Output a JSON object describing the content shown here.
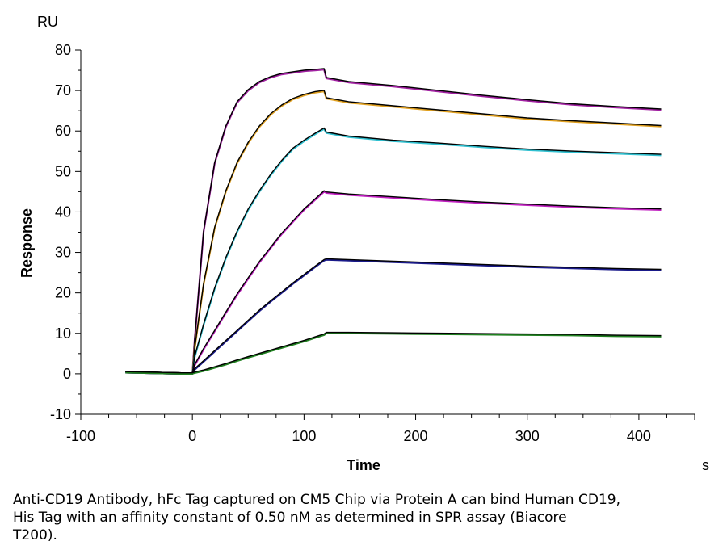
{
  "chart_data": {
    "type": "line",
    "title": "",
    "xlabel": "Time",
    "ylabel": "Response",
    "x_unit": "s",
    "y_unit": "RU",
    "xlim": [
      -100,
      450
    ],
    "ylim": [
      -10,
      80
    ],
    "x_ticks": [
      -100,
      0,
      100,
      200,
      300,
      400
    ],
    "y_ticks": [
      -10,
      0,
      10,
      20,
      30,
      40,
      50,
      60,
      70,
      80
    ],
    "grid": false,
    "legend": "none",
    "colors": {
      "fit": "#000000",
      "sensorgram": [
        "#a020a0",
        "#e0a020",
        "#30c0d0",
        "#c020c0",
        "#1a1a8a",
        "#208020"
      ]
    },
    "series": [
      {
        "x": [
          -60,
          -10,
          0,
          2,
          10,
          20,
          30,
          40,
          50,
          60,
          70,
          80,
          90,
          100,
          110,
          118,
          120,
          140,
          180,
          220,
          260,
          300,
          340,
          380,
          420
        ],
        "y": [
          0.3,
          0,
          0,
          8,
          35,
          52,
          61,
          67,
          70,
          72,
          73.2,
          74,
          74.4,
          74.8,
          75,
          75.2,
          73,
          72,
          71,
          69.8,
          68.6,
          67.5,
          66.5,
          65.8,
          65.2
        ]
      },
      {
        "x": [
          -60,
          -10,
          0,
          2,
          10,
          20,
          30,
          40,
          50,
          60,
          70,
          80,
          90,
          100,
          110,
          118,
          120,
          140,
          180,
          220,
          260,
          300,
          340,
          380,
          420
        ],
        "y": [
          0.3,
          0,
          0,
          6,
          22,
          36,
          45,
          52,
          57,
          61,
          64,
          66.2,
          67.8,
          68.8,
          69.5,
          69.8,
          68,
          67,
          66,
          65,
          64,
          63,
          62.3,
          61.7,
          61.1
        ]
      },
      {
        "x": [
          -60,
          -10,
          0,
          2,
          10,
          20,
          30,
          40,
          50,
          60,
          70,
          80,
          90,
          100,
          110,
          118,
          120,
          140,
          180,
          220,
          260,
          300,
          340,
          380,
          420
        ],
        "y": [
          0.3,
          0,
          0,
          4,
          12,
          21,
          28.5,
          35,
          40.5,
          45,
          49,
          52.5,
          55.5,
          57.5,
          59.2,
          60.5,
          59.5,
          58.5,
          57.5,
          56.8,
          56,
          55.3,
          54.8,
          54.4,
          54
        ]
      },
      {
        "x": [
          -60,
          -10,
          0,
          2,
          10,
          20,
          30,
          40,
          50,
          60,
          70,
          80,
          90,
          100,
          110,
          118,
          120,
          140,
          180,
          220,
          260,
          300,
          340,
          380,
          420
        ],
        "y": [
          0.3,
          0,
          0,
          2,
          6,
          10.5,
          15,
          19.5,
          23.5,
          27.5,
          31,
          34.5,
          37.5,
          40.5,
          43,
          45,
          44.7,
          44.2,
          43.5,
          42.8,
          42.2,
          41.7,
          41.2,
          40.8,
          40.5
        ]
      },
      {
        "x": [
          -60,
          -10,
          0,
          2,
          10,
          20,
          30,
          40,
          50,
          60,
          70,
          80,
          90,
          100,
          110,
          118,
          120,
          140,
          180,
          220,
          260,
          300,
          340,
          380,
          420
        ],
        "y": [
          0.3,
          0,
          0,
          1,
          3,
          5.5,
          8,
          10.5,
          13,
          15.5,
          17.8,
          20,
          22.2,
          24.3,
          26.4,
          28,
          28.2,
          28,
          27.6,
          27.2,
          26.8,
          26.4,
          26.1,
          25.8,
          25.6
        ]
      },
      {
        "x": [
          -60,
          -10,
          0,
          2,
          10,
          20,
          30,
          40,
          50,
          60,
          70,
          80,
          90,
          100,
          110,
          118,
          120,
          140,
          180,
          220,
          260,
          300,
          340,
          380,
          420
        ],
        "y": [
          0.3,
          0,
          0,
          0.2,
          0.7,
          1.5,
          2.3,
          3.2,
          4,
          4.8,
          5.6,
          6.4,
          7.2,
          8,
          8.9,
          9.6,
          10,
          10,
          9.9,
          9.8,
          9.7,
          9.6,
          9.5,
          9.3,
          9.2
        ]
      }
    ]
  },
  "caption": {
    "line1": "Anti-CD19 Antibody, hFc Tag captured on CM5 Chip via Protein A can bind Human CD19,",
    "line2": "His Tag with an affinity constant of 0.50 nM as determined in SPR assay (Biacore",
    "line3": "T200)."
  }
}
